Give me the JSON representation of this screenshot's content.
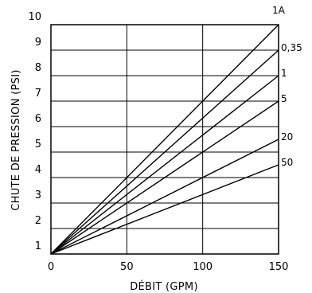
{
  "chart_data": {
    "type": "line",
    "xlabel": "DÉBIT (GPM)",
    "ylabel": "CHUTE DE PRESSION (PSI)",
    "xlim": [
      0,
      150
    ],
    "ylim": [
      1,
      10
    ],
    "x_ticks": [
      "0",
      "50",
      "100",
      "150"
    ],
    "y_ticks": [
      "1",
      "2",
      "3",
      "4",
      "5",
      "6",
      "7",
      "8",
      "9",
      "10"
    ],
    "grid": true,
    "series": [
      {
        "name": "1A",
        "x": [
          0,
          150
        ],
        "y": [
          1,
          10.0
        ]
      },
      {
        "name": "0,35",
        "x": [
          0,
          150
        ],
        "y": [
          1,
          9.0
        ]
      },
      {
        "name": "1",
        "x": [
          0,
          150
        ],
        "y": [
          1,
          8.0
        ]
      },
      {
        "name": "5",
        "x": [
          0,
          150
        ],
        "y": [
          1,
          7.0
        ]
      },
      {
        "name": "20",
        "x": [
          0,
          150
        ],
        "y": [
          1,
          5.5
        ]
      },
      {
        "name": "50",
        "x": [
          0,
          150
        ],
        "y": [
          1,
          4.5
        ]
      }
    ]
  }
}
